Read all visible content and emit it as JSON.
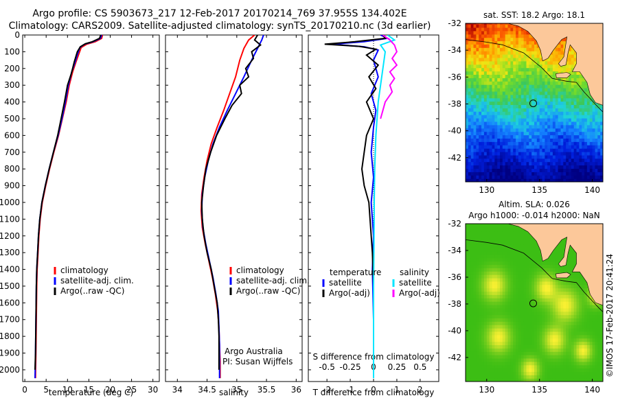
{
  "header": {
    "title_line1": "Argo profile: CS 5903673_217 12-Feb-2017 20170214_769 37.955S 134.402E",
    "title_line2": "Climatology: CARS2009. Satellite-adjusted climatology: synTS_20170210.nc (3d earlier)"
  },
  "colors": {
    "climatology": "#ff0000",
    "satellite": "#0000ff",
    "argo": "#000000",
    "sat_salinity": "#00e5ff",
    "argo_adj_salinity": "#ff00ff",
    "land": "#fcc89a"
  },
  "chart_data": [
    {
      "type": "line",
      "id": "temperature",
      "xlabel": "temperature (deg C)",
      "xlim": [
        -0.5,
        31.5
      ],
      "ylim": [
        0,
        2070
      ],
      "xticks": [
        0,
        5,
        10,
        15,
        20,
        25,
        30
      ],
      "yticks": [
        0,
        100,
        200,
        300,
        400,
        500,
        600,
        700,
        800,
        900,
        1000,
        1100,
        1200,
        1300,
        1400,
        1500,
        1600,
        1700,
        1800,
        1900,
        2000
      ],
      "legend": [
        "climatology",
        "satellite-adj. clim.",
        "Argo(..raw -QC)"
      ],
      "legend_position": "lower-center",
      "series": [
        {
          "name": "climatology",
          "color": "#ff0000",
          "points": [
            [
              18.2,
              0
            ],
            [
              18.0,
              20
            ],
            [
              16.5,
              40
            ],
            [
              14.5,
              55
            ],
            [
              13.2,
              75
            ],
            [
              12.7,
              110
            ],
            [
              12.0,
              160
            ],
            [
              11.2,
              220
            ],
            [
              10.4,
              300
            ],
            [
              9.7,
              400
            ],
            [
              8.8,
              500
            ],
            [
              7.9,
              600
            ],
            [
              6.8,
              700
            ],
            [
              5.8,
              800
            ],
            [
              4.9,
              900
            ],
            [
              4.1,
              1000
            ],
            [
              3.6,
              1100
            ],
            [
              3.3,
              1200
            ],
            [
              3.1,
              1300
            ],
            [
              2.9,
              1400
            ],
            [
              2.8,
              1500
            ],
            [
              2.7,
              1700
            ],
            [
              2.6,
              1900
            ],
            [
              2.5,
              2050
            ]
          ]
        },
        {
          "name": "satellite-adj. clim.",
          "color": "#0000ff",
          "points": [
            [
              18.0,
              0
            ],
            [
              17.7,
              20
            ],
            [
              16.0,
              40
            ],
            [
              14.0,
              55
            ],
            [
              12.9,
              75
            ],
            [
              12.4,
              110
            ],
            [
              11.8,
              160
            ],
            [
              11.0,
              220
            ],
            [
              10.2,
              300
            ],
            [
              9.5,
              400
            ],
            [
              8.7,
              500
            ],
            [
              7.8,
              600
            ],
            [
              6.7,
              700
            ],
            [
              5.7,
              800
            ],
            [
              4.8,
              900
            ],
            [
              4.0,
              1000
            ],
            [
              3.5,
              1100
            ],
            [
              3.2,
              1200
            ],
            [
              3.0,
              1300
            ],
            [
              2.8,
              1400
            ],
            [
              2.7,
              1500
            ],
            [
              2.6,
              1700
            ],
            [
              2.5,
              1900
            ],
            [
              2.4,
              2050
            ]
          ]
        },
        {
          "name": "Argo(..raw -QC)",
          "color": "#000000",
          "points": [
            [
              17.8,
              0
            ],
            [
              17.5,
              20
            ],
            [
              15.8,
              40
            ],
            [
              14.2,
              52
            ],
            [
              13.0,
              70
            ],
            [
              12.3,
              100
            ],
            [
              11.6,
              160
            ],
            [
              10.9,
              230
            ],
            [
              10.0,
              300
            ],
            [
              9.3,
              400
            ],
            [
              8.5,
              500
            ],
            [
              7.7,
              600
            ],
            [
              6.7,
              700
            ],
            [
              5.7,
              800
            ],
            [
              4.8,
              900
            ],
            [
              4.0,
              1000
            ],
            [
              3.5,
              1100
            ],
            [
              3.2,
              1200
            ],
            [
              3.0,
              1300
            ],
            [
              2.8,
              1400
            ],
            [
              2.7,
              1500
            ],
            [
              2.6,
              1700
            ],
            [
              2.5,
              1900
            ],
            [
              2.4,
              2000
            ]
          ]
        }
      ]
    },
    {
      "type": "line",
      "id": "salinity",
      "xlabel": "salinity",
      "xlim": [
        33.8,
        36.1
      ],
      "ylim": [
        0,
        2070
      ],
      "xticks": [
        34,
        34.5,
        35,
        35.5,
        36
      ],
      "legend": [
        "climatology",
        "satellite-adj. clim.",
        "Argo(..raw -QC)"
      ],
      "legend_position": "lower-right",
      "annotation_line1": "Argo Australia",
      "annotation_line2": "PI: Susan Wijffels",
      "series": [
        {
          "name": "climatology",
          "color": "#ff0000",
          "points": [
            [
              35.3,
              0
            ],
            [
              35.2,
              30
            ],
            [
              35.12,
              80
            ],
            [
              35.05,
              150
            ],
            [
              34.98,
              250
            ],
            [
              34.88,
              350
            ],
            [
              34.78,
              450
            ],
            [
              34.67,
              550
            ],
            [
              34.57,
              650
            ],
            [
              34.5,
              750
            ],
            [
              34.45,
              850
            ],
            [
              34.41,
              950
            ],
            [
              34.4,
              1050
            ],
            [
              34.42,
              1150
            ],
            [
              34.47,
              1250
            ],
            [
              34.53,
              1350
            ],
            [
              34.59,
              1450
            ],
            [
              34.64,
              1550
            ],
            [
              34.68,
              1650
            ],
            [
              34.7,
              1750
            ],
            [
              34.71,
              1850
            ],
            [
              34.72,
              1950
            ],
            [
              34.72,
              2050
            ]
          ]
        },
        {
          "name": "satellite-adj. clim.",
          "color": "#0000ff",
          "points": [
            [
              35.45,
              0
            ],
            [
              35.42,
              30
            ],
            [
              35.35,
              80
            ],
            [
              35.25,
              150
            ],
            [
              35.12,
              250
            ],
            [
              34.98,
              350
            ],
            [
              34.84,
              450
            ],
            [
              34.71,
              550
            ],
            [
              34.6,
              650
            ],
            [
              34.52,
              750
            ],
            [
              34.46,
              850
            ],
            [
              34.42,
              950
            ],
            [
              34.41,
              1050
            ],
            [
              34.43,
              1150
            ],
            [
              34.48,
              1250
            ],
            [
              34.54,
              1350
            ],
            [
              34.6,
              1450
            ],
            [
              34.65,
              1550
            ],
            [
              34.69,
              1650
            ],
            [
              34.7,
              1750
            ],
            [
              34.71,
              1850
            ],
            [
              34.71,
              1950
            ],
            [
              34.71,
              2050
            ]
          ]
        },
        {
          "name": "Argo(..raw -QC)",
          "color": "#000000",
          "points": [
            [
              35.35,
              0
            ],
            [
              35.3,
              30
            ],
            [
              35.4,
              60
            ],
            [
              35.25,
              100
            ],
            [
              35.28,
              140
            ],
            [
              35.15,
              200
            ],
            [
              35.2,
              250
            ],
            [
              35.05,
              300
            ],
            [
              35.08,
              350
            ],
            [
              34.92,
              420
            ],
            [
              34.8,
              500
            ],
            [
              34.66,
              600
            ],
            [
              34.56,
              700
            ],
            [
              34.48,
              800
            ],
            [
              34.44,
              900
            ],
            [
              34.41,
              1000
            ],
            [
              34.42,
              1100
            ],
            [
              34.45,
              1200
            ],
            [
              34.5,
              1300
            ],
            [
              34.57,
              1400
            ],
            [
              34.62,
              1500
            ],
            [
              34.67,
              1600
            ],
            [
              34.69,
              1700
            ],
            [
              34.7,
              1800
            ],
            [
              34.7,
              1900
            ],
            [
              34.7,
              2000
            ]
          ]
        }
      ]
    },
    {
      "type": "line",
      "id": "difference",
      "xlabel": "T difference from climatology",
      "xlabel_top": "S difference from climatology",
      "xlim": [
        -2.8,
        2.8
      ],
      "ylim": [
        0,
        2070
      ],
      "xticks": [
        -2,
        -1,
        0,
        1,
        2
      ],
      "xtick_labels_top": [
        "-0.5",
        "-0.25",
        "0",
        "0.25",
        "0.5"
      ],
      "xticks_top_positions": [
        -2,
        -1,
        0,
        1,
        2
      ],
      "legend_groups": [
        {
          "title": "temperature",
          "items": [
            "satellite",
            "Argo(-adj)"
          ]
        },
        {
          "title": "salinity",
          "items": [
            "satellite",
            "Argo(-adj)"
          ]
        }
      ],
      "series": [
        {
          "name": "temperature satellite",
          "color": "#0000ff",
          "points": [
            [
              0.3,
              0
            ],
            [
              0.6,
              20
            ],
            [
              -0.4,
              40
            ],
            [
              -1.8,
              55
            ],
            [
              -0.4,
              70
            ],
            [
              0.2,
              90
            ],
            [
              0.0,
              150
            ],
            [
              0.2,
              250
            ],
            [
              -0.1,
              350
            ],
            [
              0.1,
              450
            ],
            [
              0.0,
              550
            ],
            [
              -0.1,
              700
            ],
            [
              0.0,
              850
            ],
            [
              -0.1,
              1000
            ],
            [
              0.0,
              1200
            ],
            [
              -0.05,
              1400
            ],
            [
              0.0,
              1700
            ],
            [
              0.0,
              2000
            ]
          ]
        },
        {
          "name": "temperature Argo(-adj)",
          "color": "#000000",
          "points": [
            [
              0.4,
              0
            ],
            [
              0.5,
              20
            ],
            [
              -0.8,
              40
            ],
            [
              -2.1,
              55
            ],
            [
              -0.6,
              68
            ],
            [
              0.1,
              85
            ],
            [
              -0.3,
              120
            ],
            [
              0.2,
              180
            ],
            [
              -0.2,
              250
            ],
            [
              0.1,
              320
            ],
            [
              -0.3,
              400
            ],
            [
              0.0,
              500
            ],
            [
              -0.3,
              600
            ],
            [
              -0.4,
              700
            ],
            [
              -0.5,
              800
            ],
            [
              -0.4,
              900
            ],
            [
              -0.2,
              1000
            ],
            [
              -0.15,
              1100
            ],
            [
              -0.1,
              1200
            ],
            [
              -0.05,
              1300
            ],
            [
              0.0,
              1500
            ],
            [
              0.0,
              1700
            ],
            [
              0.0,
              1900
            ],
            [
              0.0,
              2000
            ]
          ]
        },
        {
          "name": "salinity satellite",
          "color": "#00e5ff",
          "points": [
            [
              0.6,
              0
            ],
            [
              0.9,
              30
            ],
            [
              0.3,
              60
            ],
            [
              0.5,
              100
            ],
            [
              0.4,
              200
            ],
            [
              0.3,
              300
            ],
            [
              0.2,
              400
            ],
            [
              0.15,
              500
            ],
            [
              0.1,
              600
            ],
            [
              0.05,
              800
            ],
            [
              0.03,
              1000
            ],
            [
              0.02,
              1200
            ],
            [
              0.0,
              1500
            ],
            [
              0.0,
              2050
            ]
          ]
        },
        {
          "name": "salinity Argo(-adj)",
          "color": "#ff00ff",
          "points": [
            [
              0.4,
              0
            ],
            [
              0.7,
              30
            ],
            [
              0.9,
              60
            ],
            [
              1.0,
              100
            ],
            [
              0.8,
              140
            ],
            [
              1.0,
              180
            ],
            [
              0.7,
              220
            ],
            [
              0.9,
              260
            ],
            [
              0.7,
              300
            ],
            [
              0.8,
              340
            ],
            [
              0.5,
              400
            ],
            [
              0.4,
              450
            ],
            [
              0.3,
              500
            ]
          ]
        }
      ]
    },
    {
      "type": "heatmap",
      "id": "sst_map",
      "title": "sat. SST: 18.2  Argo: 18.1",
      "xlim": [
        128,
        141
      ],
      "ylim": [
        -43.8,
        -32
      ],
      "xticks": [
        130,
        135,
        140
      ],
      "yticks": [
        -32,
        -34,
        -36,
        -38,
        -40,
        -42
      ],
      "marker": {
        "lon": 134.402,
        "lat": -37.955
      },
      "sat_sst": 18.2,
      "argo_sst": 18.1
    },
    {
      "type": "heatmap",
      "id": "sla_map",
      "title_line1": "Altim. SLA: 0.026",
      "title_line2": "Argo h1000: -0.014 h2000: NaN",
      "xlim": [
        128,
        141
      ],
      "ylim": [
        -43.8,
        -32
      ],
      "xticks": [
        130,
        135,
        140
      ],
      "yticks": [
        -32,
        -34,
        -36,
        -38,
        -40,
        -42
      ],
      "marker": {
        "lon": 134.402,
        "lat": -37.955
      },
      "altim_sla": 0.026,
      "argo_h1000": -0.014,
      "argo_h2000": "NaN"
    }
  ],
  "footer": {
    "credit": "©IMOS 17-Feb-2017 20:41:24"
  }
}
